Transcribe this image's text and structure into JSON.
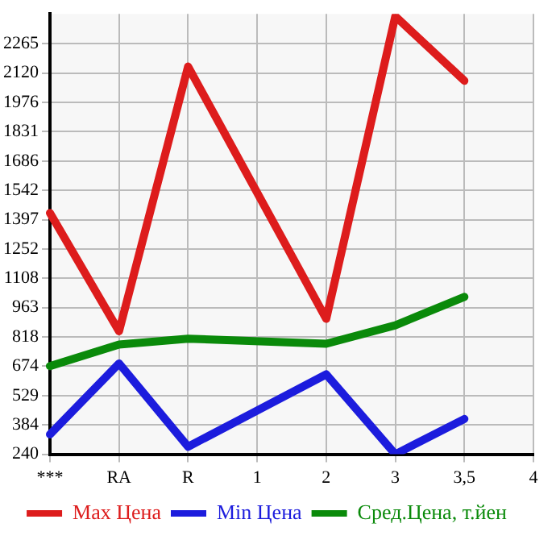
{
  "chart_data": {
    "type": "line",
    "categories": [
      "***",
      "RA",
      "R",
      "1",
      "2",
      "3",
      "3,5",
      "4"
    ],
    "series": [
      {
        "name": "Max Цена",
        "color": "#dd1c1c",
        "values": [
          1430,
          847,
          2152,
          null,
          908,
          2400,
          2082,
          null
        ]
      },
      {
        "name": "Min Цена",
        "color": "#1c1cdd",
        "values": [
          338,
          688,
          277,
          null,
          634,
          240,
          414,
          null
        ]
      },
      {
        "name": "Сред.Цена, т.йен",
        "color": "#0a8a0a",
        "values": [
          675,
          781,
          810,
          null,
          785,
          876,
          1016,
          null
        ]
      }
    ],
    "ylim": [
      240,
      2412
    ],
    "yticks": [
      240,
      384,
      529,
      674,
      818,
      963,
      1108,
      1252,
      1397,
      1542,
      1686,
      1831,
      1976,
      2120,
      2265
    ],
    "grid": true,
    "legend": "bottom",
    "marker": "none",
    "line_style": "solid"
  }
}
